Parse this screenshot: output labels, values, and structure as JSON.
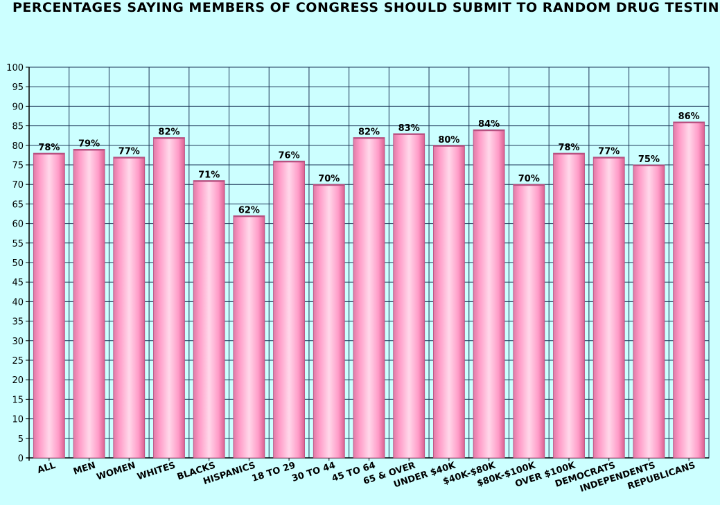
{
  "chart_data": {
    "type": "bar",
    "title": "Percentages saying members of Congress should submit to random drug testing",
    "categories": [
      "All",
      "Men",
      "Women",
      "Whites",
      "Blacks",
      "Hispanics",
      "18 to 29",
      "30 to 44",
      "45 to 64",
      "65 & over",
      "Under $40K",
      "$40K-$80K",
      "$80K-$100K",
      "Over $100K",
      "Democrats",
      "Independents",
      "Republicans"
    ],
    "values": [
      78,
      79,
      77,
      82,
      71,
      62,
      76,
      70,
      82,
      83,
      80,
      84,
      70,
      78,
      77,
      75,
      86
    ],
    "data_labels": [
      "78%",
      "79%",
      "77%",
      "82%",
      "71%",
      "62%",
      "76%",
      "70%",
      "82%",
      "83%",
      "80%",
      "84%",
      "70%",
      "78%",
      "77%",
      "75%",
      "86%"
    ],
    "ylim": [
      0,
      100
    ],
    "ytick_step": 5,
    "grid": true,
    "colors": {
      "background": "#ccffff",
      "plot_area": "#ccffff",
      "bar_edge": "#ff88bb",
      "bar_center": "#ffd8ea",
      "bar_dark": "#d9608f",
      "grid": "#1a3355"
    }
  }
}
